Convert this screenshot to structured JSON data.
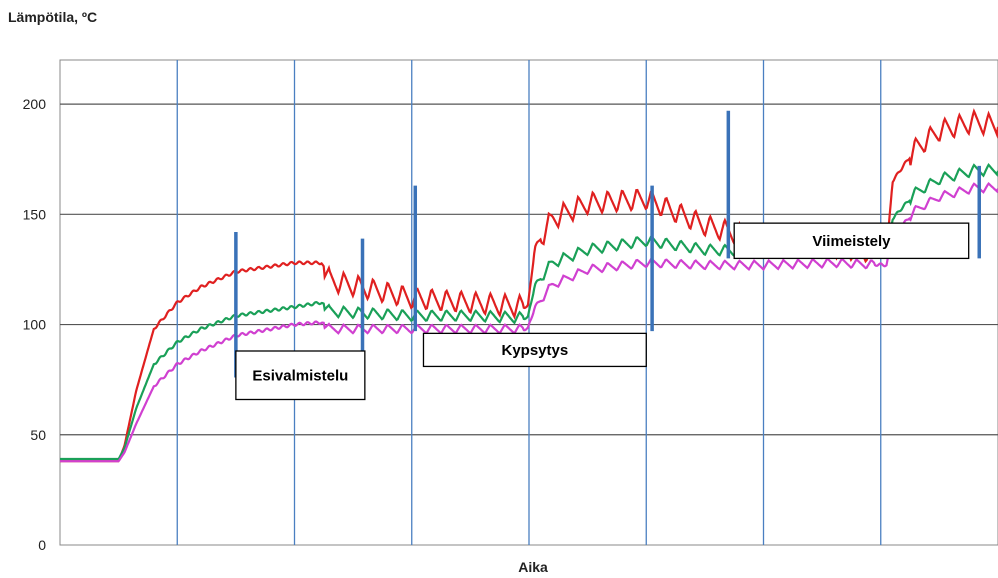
{
  "chart_data": {
    "type": "line",
    "ylabel": "Lämpötila, ºC",
    "xlabel": "Aika",
    "ylim": [
      0,
      220
    ],
    "yticks": [
      0,
      50,
      100,
      150,
      200
    ],
    "grid": true,
    "x_gridlines": 8,
    "series": [
      {
        "color": "#e02020",
        "x": [
          0,
          0.5,
          0.55,
          0.65,
          0.8,
          1.0,
          1.2,
          1.5,
          2.0,
          2.23,
          2.3,
          3.0,
          3.5,
          3.99,
          4.05,
          4.2,
          4.5,
          5.0,
          5.5,
          6.0,
          6.6,
          7.05,
          7.1,
          7.3,
          7.5,
          7.8,
          8.0
        ],
        "values": [
          38,
          38,
          45,
          70,
          98,
          110,
          117,
          124,
          128,
          128,
          120,
          112,
          110,
          108,
          135,
          148,
          155,
          157,
          145,
          138,
          135,
          132,
          165,
          180,
          188,
          192,
          190
        ]
      },
      {
        "color": "#1aa058",
        "x": [
          0,
          0.5,
          0.55,
          0.65,
          0.8,
          1.0,
          1.2,
          1.5,
          2.0,
          2.23,
          2.3,
          3.0,
          3.5,
          3.99,
          4.05,
          4.2,
          4.5,
          5.0,
          5.5,
          6.0,
          6.6,
          7.05,
          7.1,
          7.3,
          7.5,
          7.8,
          8.0
        ],
        "values": [
          39,
          39,
          44,
          62,
          82,
          92,
          98,
          104,
          108,
          110,
          106,
          104,
          104,
          103,
          118,
          128,
          134,
          138,
          134,
          133,
          133,
          132,
          148,
          160,
          166,
          170,
          170
        ]
      },
      {
        "color": "#d040d0",
        "x": [
          0,
          0.5,
          0.55,
          0.65,
          0.8,
          1.0,
          1.2,
          1.5,
          2.0,
          2.23,
          2.3,
          3.0,
          3.5,
          3.99,
          4.05,
          4.2,
          4.5,
          5.0,
          5.5,
          6.0,
          6.6,
          7.05,
          7.1,
          7.3,
          7.5,
          7.8,
          8.0
        ],
        "values": [
          38,
          38,
          42,
          55,
          72,
          82,
          88,
          95,
          100,
          101,
          98,
          98,
          98,
          98,
          108,
          118,
          125,
          128,
          127,
          127,
          128,
          127,
          140,
          152,
          158,
          162,
          162
        ]
      }
    ],
    "phases": [
      {
        "label": "Esivalmistelu",
        "start": 1.5,
        "end": 2.6,
        "box_y": [
          66,
          88
        ]
      },
      {
        "label": "Kypsytys",
        "start": 3.1,
        "end": 5.0,
        "box_y": [
          81,
          96
        ]
      },
      {
        "label": "Viimeistely",
        "start": 5.75,
        "end": 7.75,
        "box_y": [
          130,
          146
        ]
      }
    ],
    "phase_dividers": [
      {
        "x": 1.5,
        "y": [
          76,
          142
        ]
      },
      {
        "x": 2.58,
        "y": [
          72,
          139
        ]
      },
      {
        "x": 3.03,
        "y": [
          97,
          163
        ]
      },
      {
        "x": 5.05,
        "y": [
          97,
          163
        ]
      },
      {
        "x": 5.7,
        "y": [
          130,
          197
        ]
      },
      {
        "x": 7.84,
        "y": [
          130,
          172
        ]
      }
    ]
  }
}
